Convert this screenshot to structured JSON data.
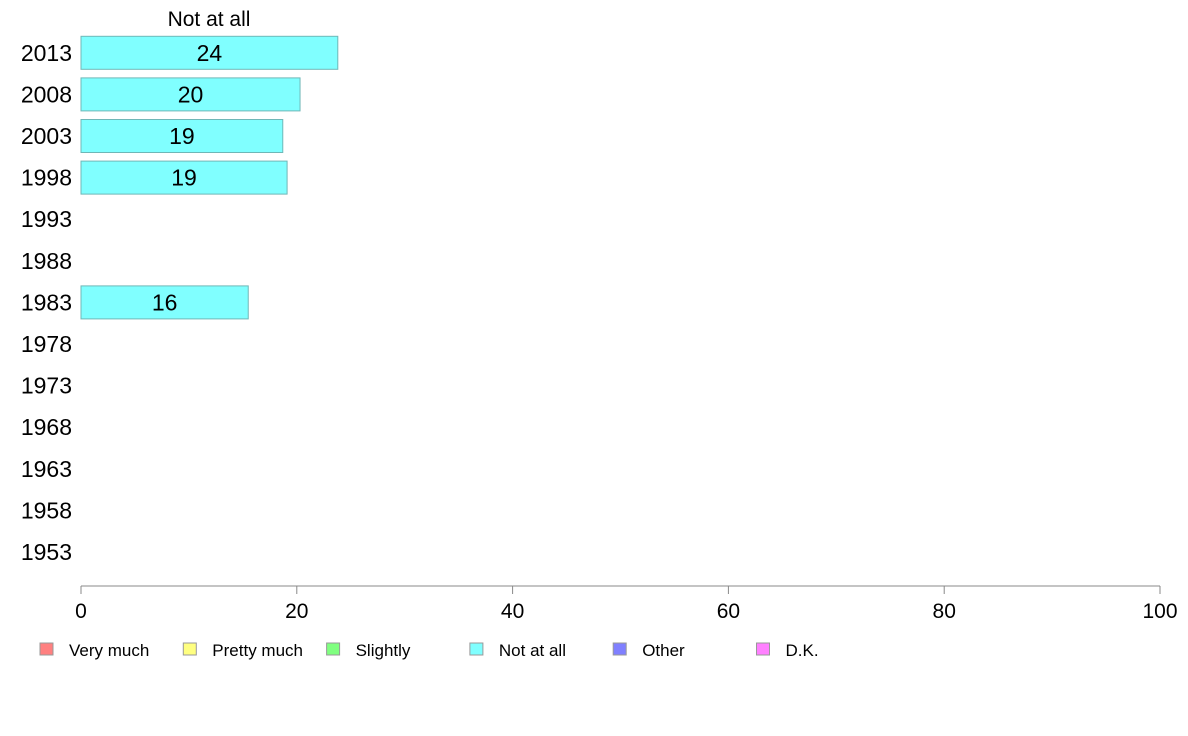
{
  "chart_data": {
    "type": "bar",
    "orientation": "horizontal",
    "panel_title": "Not at all",
    "categories": [
      "2013",
      "2008",
      "2003",
      "1998",
      "1993",
      "1988",
      "1983",
      "1978",
      "1973",
      "1968",
      "1963",
      "1958",
      "1953"
    ],
    "series": [
      {
        "name": "Not at all",
        "color": "#80ffff",
        "values": [
          23.8,
          20.3,
          18.7,
          19.1,
          null,
          null,
          15.5,
          null,
          null,
          null,
          null,
          null,
          null
        ],
        "labels": [
          "24",
          "20",
          "19",
          "19",
          "",
          "",
          "16",
          "",
          "",
          "",
          "",
          "",
          ""
        ]
      }
    ],
    "xlim": [
      0,
      100
    ],
    "xticks": [
      0,
      20,
      40,
      60,
      80,
      100
    ],
    "grid": false,
    "legend": {
      "placement": "bottom",
      "entries": [
        {
          "label": "Very much",
          "color": "#ff8080"
        },
        {
          "label": "Pretty much",
          "color": "#ffff80"
        },
        {
          "label": "Slightly",
          "color": "#80ff80"
        },
        {
          "label": "Not at all",
          "color": "#80ffff"
        },
        {
          "label": "Other",
          "color": "#8080ff"
        },
        {
          "label": "D.K.",
          "color": "#ff80ff"
        }
      ]
    }
  }
}
